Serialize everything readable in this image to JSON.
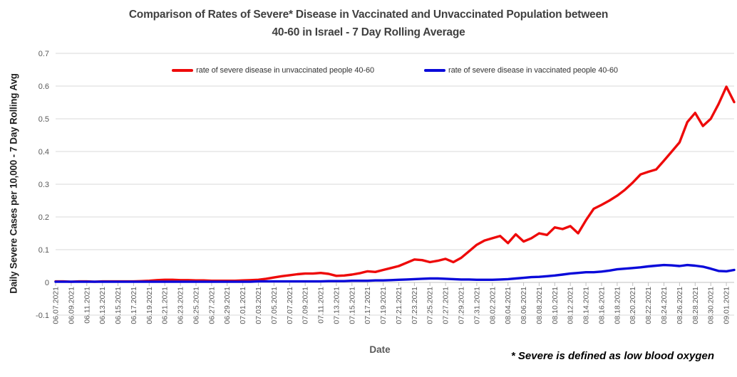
{
  "header": {
    "title_line1": "Comparison of Rates of Severe* Disease in Vaccinated and Unvaccinated Population between",
    "title_line2": "40-60 in Israel - 7 Day Rolling Average"
  },
  "footnote": "* Severe is defined as low blood oxygen",
  "chart_data": {
    "type": "line",
    "title": "Comparison of Rates of Severe* Disease in Vaccinated and Unvaccinated Population between 40-60 in Israel - 7 Day Rolling Average",
    "xlabel": "Date",
    "ylabel": "Daily Severe Cases per 10,000 - 7 Day Rolling Avg",
    "ylim": [
      -0.1,
      0.7
    ],
    "ytick_step": 0.1,
    "grid": true,
    "legend_position": "top",
    "x_tick_every": 2,
    "colors": {
      "gridline": "#d9d9d9",
      "axis": "#c0c0c0",
      "tick_text": "#595959"
    },
    "x": [
      "06.07.2021",
      "06.08.2021",
      "06.09.2021",
      "06.10.2021",
      "06.11.2021",
      "06.12.2021",
      "06.13.2021",
      "06.14.2021",
      "06.15.2021",
      "06.16.2021",
      "06.17.2021",
      "06.18.2021",
      "06.19.2021",
      "06.20.2021",
      "06.21.2021",
      "06.22.2021",
      "06.23.2021",
      "06.24.2021",
      "06.25.2021",
      "06.26.2021",
      "06.27.2021",
      "06.28.2021",
      "06.29.2021",
      "06.30.2021",
      "07.01.2021",
      "07.02.2021",
      "07.03.2021",
      "07.04.2021",
      "07.05.2021",
      "07.06.2021",
      "07.07.2021",
      "07.08.2021",
      "07.09.2021",
      "07.10.2021",
      "07.11.2021",
      "07.12.2021",
      "07.13.2021",
      "07.14.2021",
      "07.15.2021",
      "07.16.2021",
      "07.17.2021",
      "07.18.2021",
      "07.19.2021",
      "07.20.2021",
      "07.21.2021",
      "07.22.2021",
      "07.23.2021",
      "07.24.2021",
      "07.25.2021",
      "07.26.2021",
      "07.27.2021",
      "07.28.2021",
      "07.29.2021",
      "07.30.2021",
      "07.31.2021",
      "08.01.2021",
      "08.02.2021",
      "08.03.2021",
      "08.04.2021",
      "08.05.2021",
      "08.06.2021",
      "08.07.2021",
      "08.08.2021",
      "08.09.2021",
      "08.10.2021",
      "08.11.2021",
      "08.12.2021",
      "08.13.2021",
      "08.14.2021",
      "08.15.2021",
      "08.16.2021",
      "08.17.2021",
      "08.18.2021",
      "08.19.2021",
      "08.20.2021",
      "08.21.2021",
      "08.22.2021",
      "08.23.2021",
      "08.24.2021",
      "08.25.2021",
      "08.26.2021",
      "08.27.2021",
      "08.28.2021",
      "08.29.2021",
      "08.30.2021",
      "08.31.2021",
      "09.01.2021",
      "09.02.2021"
    ],
    "series": [
      {
        "id": "unvaccinated",
        "name": "rate of severe disease in unvaccinated people 40-60",
        "color": "#ee0a0a",
        "values": [
          0.003,
          0.003,
          0.002,
          0.003,
          0.003,
          0.002,
          0.003,
          0.003,
          0.003,
          0.003,
          0.003,
          0.004,
          0.005,
          0.007,
          0.008,
          0.008,
          0.007,
          0.007,
          0.006,
          0.006,
          0.005,
          0.005,
          0.005,
          0.005,
          0.006,
          0.007,
          0.008,
          0.011,
          0.015,
          0.019,
          0.022,
          0.025,
          0.027,
          0.027,
          0.029,
          0.026,
          0.02,
          0.021,
          0.024,
          0.028,
          0.034,
          0.032,
          0.038,
          0.044,
          0.05,
          0.06,
          0.07,
          0.068,
          0.062,
          0.066,
          0.072,
          0.062,
          0.075,
          0.095,
          0.115,
          0.128,
          0.135,
          0.142,
          0.12,
          0.147,
          0.125,
          0.135,
          0.15,
          0.145,
          0.168,
          0.163,
          0.172,
          0.15,
          0.19,
          0.225,
          0.237,
          0.25,
          0.265,
          0.283,
          0.305,
          0.33,
          0.338,
          0.345,
          0.372,
          0.4,
          0.428,
          0.49,
          0.518,
          0.478,
          0.5,
          0.545,
          0.598,
          0.551
        ]
      },
      {
        "id": "vaccinated",
        "name": "rate of severe disease in vaccinated people 40-60",
        "color": "#0a0ada",
        "values": [
          0.002,
          0.002,
          0.002,
          0.002,
          0.002,
          0.002,
          0.002,
          0.002,
          0.002,
          0.002,
          0.002,
          0.002,
          0.002,
          0.002,
          0.002,
          0.002,
          0.002,
          0.002,
          0.002,
          0.002,
          0.002,
          0.002,
          0.002,
          0.002,
          0.002,
          0.002,
          0.003,
          0.003,
          0.003,
          0.003,
          0.003,
          0.003,
          0.003,
          0.003,
          0.003,
          0.004,
          0.004,
          0.004,
          0.005,
          0.005,
          0.005,
          0.006,
          0.006,
          0.007,
          0.008,
          0.009,
          0.01,
          0.011,
          0.012,
          0.012,
          0.011,
          0.01,
          0.009,
          0.009,
          0.008,
          0.008,
          0.008,
          0.009,
          0.01,
          0.012,
          0.014,
          0.016,
          0.017,
          0.019,
          0.021,
          0.024,
          0.027,
          0.029,
          0.031,
          0.031,
          0.033,
          0.036,
          0.04,
          0.042,
          0.044,
          0.046,
          0.049,
          0.051,
          0.053,
          0.052,
          0.05,
          0.053,
          0.051,
          0.048,
          0.042,
          0.035,
          0.034,
          0.038
        ]
      }
    ]
  }
}
